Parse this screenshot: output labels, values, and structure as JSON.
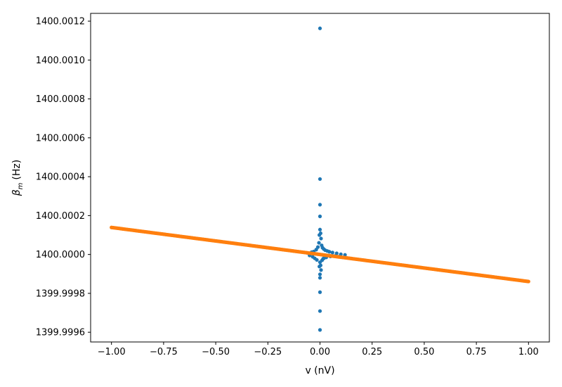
{
  "chart_data": {
    "type": "scatter",
    "title": "",
    "xlabel": "v (nV)",
    "ylabel": "(Hz)",
    "ylabel_symbol": "β",
    "ylabel_subscript": "m",
    "xlim": [
      -1.1,
      1.1
    ],
    "ylim": [
      1399.99955,
      1400.00124
    ],
    "x_ticks": [
      -1.0,
      -0.75,
      -0.5,
      -0.25,
      0.0,
      0.25,
      0.5,
      0.75,
      1.0
    ],
    "x_tick_labels": [
      "−1.00",
      "−0.75",
      "−0.50",
      "−0.25",
      "0.00",
      "0.25",
      "0.50",
      "0.75",
      "1.00"
    ],
    "y_ticks": [
      1399.9996,
      1399.9998,
      1400.0,
      1400.0002,
      1400.0004,
      1400.0006,
      1400.0008,
      1400.001,
      1400.0012
    ],
    "y_tick_labels": [
      "1399.9996",
      "1399.9998",
      "1400.0000",
      "1400.0002",
      "1400.0004",
      "1400.0006",
      "1400.0008",
      "1400.0010",
      "1400.0012"
    ],
    "grid": false,
    "legend": false,
    "series": [
      {
        "color": "#1f77b4",
        "points": [
          [
            0.0,
            1400.001163
          ],
          [
            0.0,
            1400.000388
          ],
          [
            0.0,
            1400.000256
          ],
          [
            0.0,
            1400.000196
          ],
          [
            0.0,
            1400.000128
          ],
          [
            0.003,
            1400.000109
          ],
          [
            -0.003,
            1400.0001
          ],
          [
            0.005,
            1400.000082
          ],
          [
            -0.005,
            1400.00006
          ],
          [
            0.008,
            1400.000047
          ],
          [
            0.012,
            1400.000035
          ],
          [
            -0.01,
            1400.000038
          ],
          [
            0.018,
            1400.000028
          ],
          [
            -0.018,
            1400.000025
          ],
          [
            0.025,
            1400.000022
          ],
          [
            0.035,
            1400.000018
          ],
          [
            0.045,
            1400.000014
          ],
          [
            0.06,
            1400.00001
          ],
          [
            0.08,
            1400.000006
          ],
          [
            0.1,
            1400.000001
          ],
          [
            0.12,
            1399.999998
          ],
          [
            -0.03,
            1400.000015
          ],
          [
            -0.04,
            1400.000012
          ],
          [
            0.0,
            1399.99996
          ],
          [
            0.003,
            1399.999944
          ],
          [
            -0.003,
            1399.999938
          ],
          [
            0.005,
            1399.99992
          ],
          [
            0.0,
            1399.999898
          ],
          [
            0.0,
            1399.99988
          ],
          [
            0.0,
            1399.999806
          ],
          [
            0.0,
            1399.999709
          ],
          [
            0.0,
            1399.999612
          ],
          [
            0.01,
            1399.99997
          ],
          [
            0.015,
            1399.999978
          ],
          [
            0.02,
            1399.999982
          ],
          [
            -0.015,
            1399.999972
          ],
          [
            -0.025,
            1399.99998
          ],
          [
            0.03,
            1399.999985
          ],
          [
            -0.035,
            1399.999988
          ],
          [
            0.05,
            1399.99999
          ],
          [
            -0.05,
            1399.999995
          ],
          [
            0.07,
            1399.999992
          ],
          [
            0.09,
            1399.999989
          ],
          [
            -0.06,
            1400.000008
          ]
        ]
      },
      {
        "color": "#ff7f0e",
        "x_range": [
          -1.0,
          1.0
        ],
        "y_at_x_min": 1400.000139,
        "y_at_x_max": 1399.999861
      }
    ]
  }
}
